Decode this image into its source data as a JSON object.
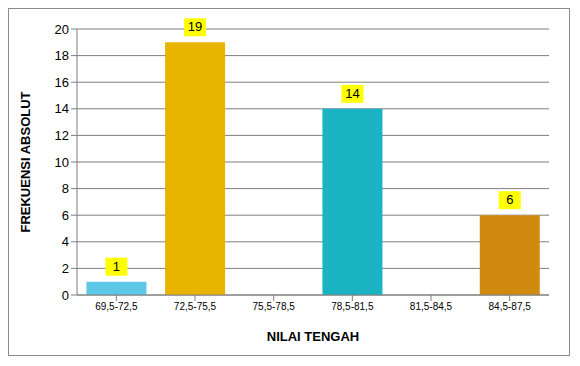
{
  "chart_data": {
    "type": "bar",
    "x_label": "NILAI TENGAH",
    "y_label": "FREKUENSI ABSOLUT",
    "categories": [
      "69,5-72,5",
      "72,5-75,5",
      "75,5-78,5",
      "78,5-81,5",
      "81,5-84,5",
      "84,5-87,5"
    ],
    "values": [
      1,
      19,
      0,
      14,
      0,
      6
    ],
    "colors": [
      "#5bc8e8",
      "#e8b400",
      "#2e8b57",
      "#1ab3c4",
      "#1f4e79",
      "#d08a10"
    ],
    "ylim": [
      0,
      20
    ],
    "yticks": [
      0,
      2,
      4,
      6,
      8,
      10,
      12,
      14,
      16,
      18,
      20
    ],
    "grid": true,
    "data_labels": true
  }
}
